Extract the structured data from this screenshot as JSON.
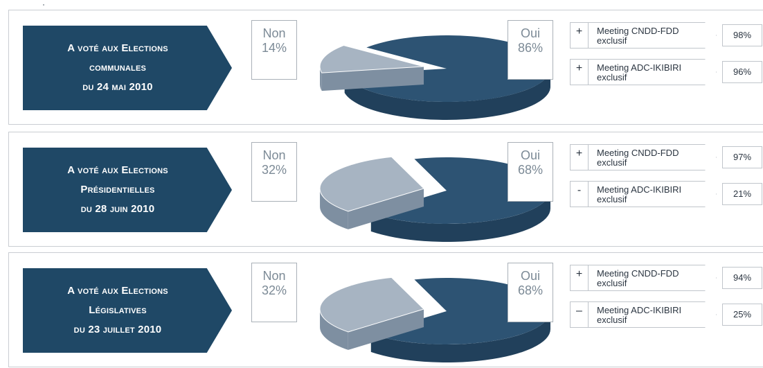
{
  "colors": {
    "navy": "#1f4866",
    "pie_dark": "#2d5373",
    "pie_dark_side": "#21405b",
    "pie_light": "#a7b4c2",
    "pie_light_side": "#7e8fa1"
  },
  "panels": [
    {
      "title_lines": [
        "A voté aux Elections",
        "communales",
        "du 24 mai 2010"
      ],
      "non_label": "Non",
      "non_pct": "14%",
      "oui_label": "Oui",
      "oui_pct": "86%",
      "meetings": [
        {
          "sign": "+",
          "line1": "Meeting CNDD-FDD",
          "line2": "exclusif",
          "pct": "98%"
        },
        {
          "sign": "+",
          "line1": "Meeting ADC-IKIBIRI",
          "line2": "exclusif",
          "pct": "96%"
        }
      ]
    },
    {
      "title_lines": [
        "A voté aux Elections",
        "Présidentielles",
        "du 28 juin 2010"
      ],
      "non_label": "Non",
      "non_pct": "32%",
      "oui_label": "Oui",
      "oui_pct": "68%",
      "meetings": [
        {
          "sign": "+",
          "line1": "Meeting CNDD-FDD",
          "line2": "exclusif",
          "pct": "97%"
        },
        {
          "sign": "-",
          "line1": "Meeting ADC-IKIBIRI",
          "line2": "exclusif",
          "pct": "21%"
        }
      ]
    },
    {
      "title_lines": [
        "A voté aux Elections",
        "Législatives",
        "du 23 juillet 2010"
      ],
      "non_label": "Non",
      "non_pct": "32%",
      "oui_label": "Oui",
      "oui_pct": "68%",
      "meetings": [
        {
          "sign": "+",
          "line1": "Meeting CNDD-FDD",
          "line2": "exclusif",
          "pct": "94%"
        },
        {
          "sign": "–",
          "line1": "Meeting ADC-IKIBIRI",
          "line2": "exclusif",
          "pct": "25%"
        }
      ]
    }
  ],
  "chart_data": [
    {
      "type": "pie",
      "categories": [
        "Non",
        "Oui"
      ],
      "values": [
        14,
        86
      ]
    },
    {
      "type": "pie",
      "categories": [
        "Non",
        "Oui"
      ],
      "values": [
        32,
        68
      ]
    },
    {
      "type": "pie",
      "categories": [
        "Non",
        "Oui"
      ],
      "values": [
        32,
        68
      ]
    }
  ]
}
